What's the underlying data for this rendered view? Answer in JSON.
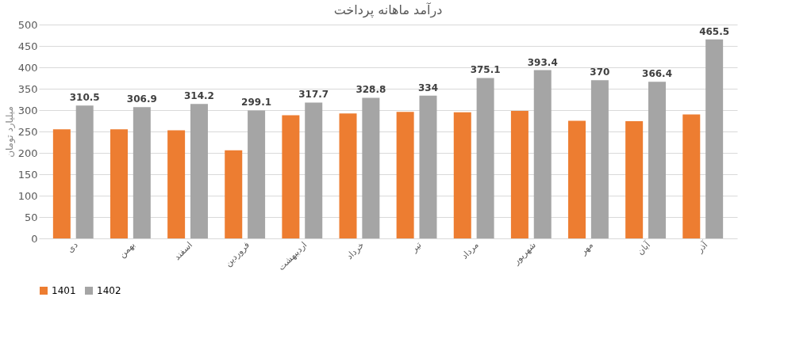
{
  "chart_data": {
    "type": "bar",
    "title": "درآمد ماهانه پرداخت",
    "ylabel": "میلیارد تومان",
    "categories": [
      "دی",
      "بهمن",
      "اسفند",
      "فروردین",
      "اردیبهشت",
      "خرداد",
      "تیر",
      "مرداد",
      "شهریور",
      "مهر",
      "آبان",
      "آذر"
    ],
    "series": [
      {
        "name": "1401",
        "color": "#ed7d31",
        "values": [
          255,
          255,
          253,
          206,
          288,
          292,
          296,
          295,
          298,
          275,
          274,
          290
        ]
      },
      {
        "name": "1402",
        "color": "#a5a5a5",
        "values": [
          310.5,
          306.9,
          314.2,
          299.1,
          317.7,
          328.8,
          334,
          375.1,
          393.4,
          370,
          366.4,
          465.5
        ],
        "value_labels": [
          "310.5",
          "306.9",
          "314.2",
          "299.1",
          "317.7",
          "328.8",
          "334",
          "375.1",
          "393.4",
          "370",
          "366.4",
          "465.5"
        ]
      }
    ],
    "ylim": [
      0,
      500
    ],
    "yticks": [
      0,
      50,
      100,
      150,
      200,
      250,
      300,
      350,
      400,
      450,
      500
    ],
    "grid": "y",
    "legend": "bottom"
  }
}
